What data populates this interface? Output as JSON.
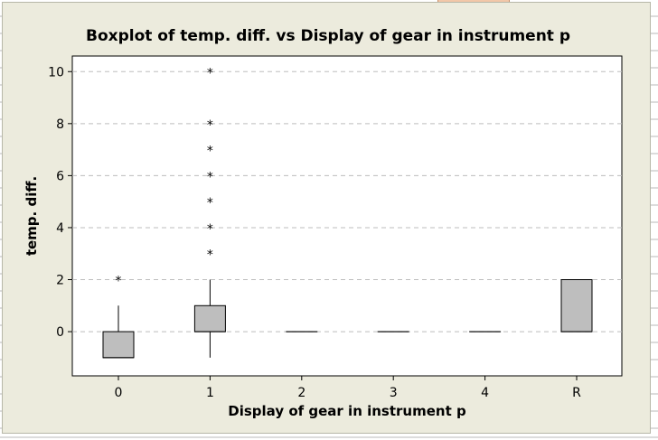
{
  "chart_data": {
    "type": "boxplot",
    "title": "Boxplot of temp. diff. vs Display of gear in instrument p",
    "xlabel": "Display of gear in instrument p",
    "ylabel": "temp. diff.",
    "ylim": [
      -1.7,
      10.6
    ],
    "yticks": [
      0,
      2,
      4,
      6,
      8,
      10
    ],
    "grid": "horizontal-dashed",
    "box_fill": "#bebebe",
    "categories": [
      "0",
      "1",
      "2",
      "3",
      "4",
      "R"
    ],
    "boxes": [
      {
        "category": "0",
        "whisker_low": -1,
        "q1": -1,
        "median": -1,
        "q3": 0,
        "whisker_high": 1,
        "outliers": [
          2
        ]
      },
      {
        "category": "1",
        "whisker_low": -1,
        "q1": 0,
        "median": 0,
        "q3": 1,
        "whisker_high": 2,
        "outliers": [
          3,
          4,
          5,
          6,
          7,
          8,
          10
        ]
      },
      {
        "category": "2",
        "whisker_low": 0,
        "q1": 0,
        "median": 0,
        "q3": 0,
        "whisker_high": 0,
        "outliers": []
      },
      {
        "category": "3",
        "whisker_low": 0,
        "q1": 0,
        "median": 0,
        "q3": 0,
        "whisker_high": 0,
        "outliers": []
      },
      {
        "category": "4",
        "whisker_low": 0,
        "q1": 0,
        "median": 0,
        "q3": 0,
        "whisker_high": 0,
        "outliers": []
      },
      {
        "category": "R",
        "whisker_low": 0,
        "q1": 0,
        "median": 0,
        "q3": 2,
        "whisker_high": 2,
        "outliers": []
      }
    ]
  }
}
